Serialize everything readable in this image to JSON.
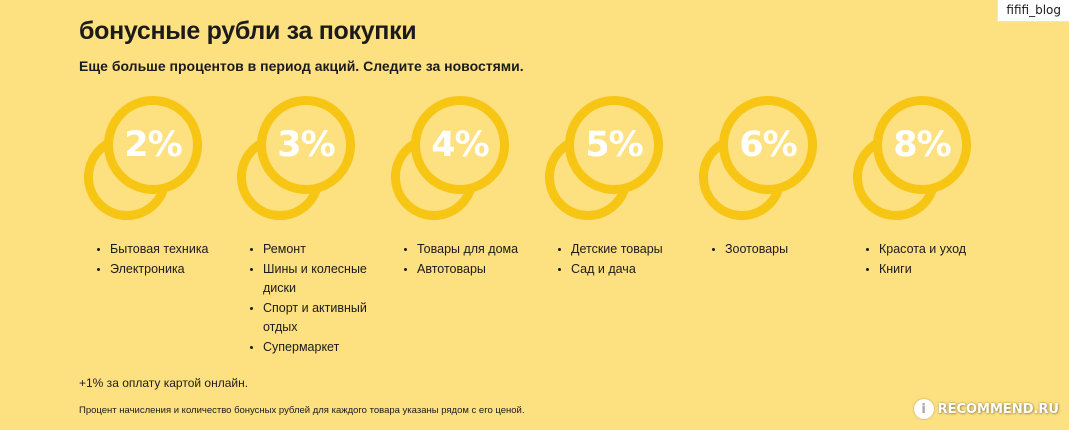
{
  "watermark_top": "fififi_blog",
  "title": "бонусные рубли за покупки",
  "subtitle": "Еще больше процентов в период акций. Следите за новостями.",
  "colors": {
    "background": "#fde07f",
    "coin": "#f7c514",
    "percent_text": "#ffffff"
  },
  "tiers": [
    {
      "percent": "2%",
      "items": [
        "Бытовая техника",
        "Электроника"
      ]
    },
    {
      "percent": "3%",
      "items": [
        "Ремонт",
        "Шины и колесные диски",
        "Спорт и активный отдых",
        "Супермаркет"
      ]
    },
    {
      "percent": "4%",
      "items": [
        "Товары для дома",
        "Автотовары"
      ]
    },
    {
      "percent": "5%",
      "items": [
        "Детские товары",
        "Сад и дача"
      ]
    },
    {
      "percent": "6%",
      "items": [
        "Зоотовары"
      ]
    },
    {
      "percent": "8%",
      "items": [
        "Красота и уход",
        "Книги"
      ]
    }
  ],
  "note_online": "+1% за оплату картой онлайн.",
  "note_small": "Процент начисления и количество бонусных рублей для каждого товара указаны рядом с его ценой.",
  "watermark_bottom": {
    "badge": "i",
    "text": "RECOMMEND.RU"
  }
}
